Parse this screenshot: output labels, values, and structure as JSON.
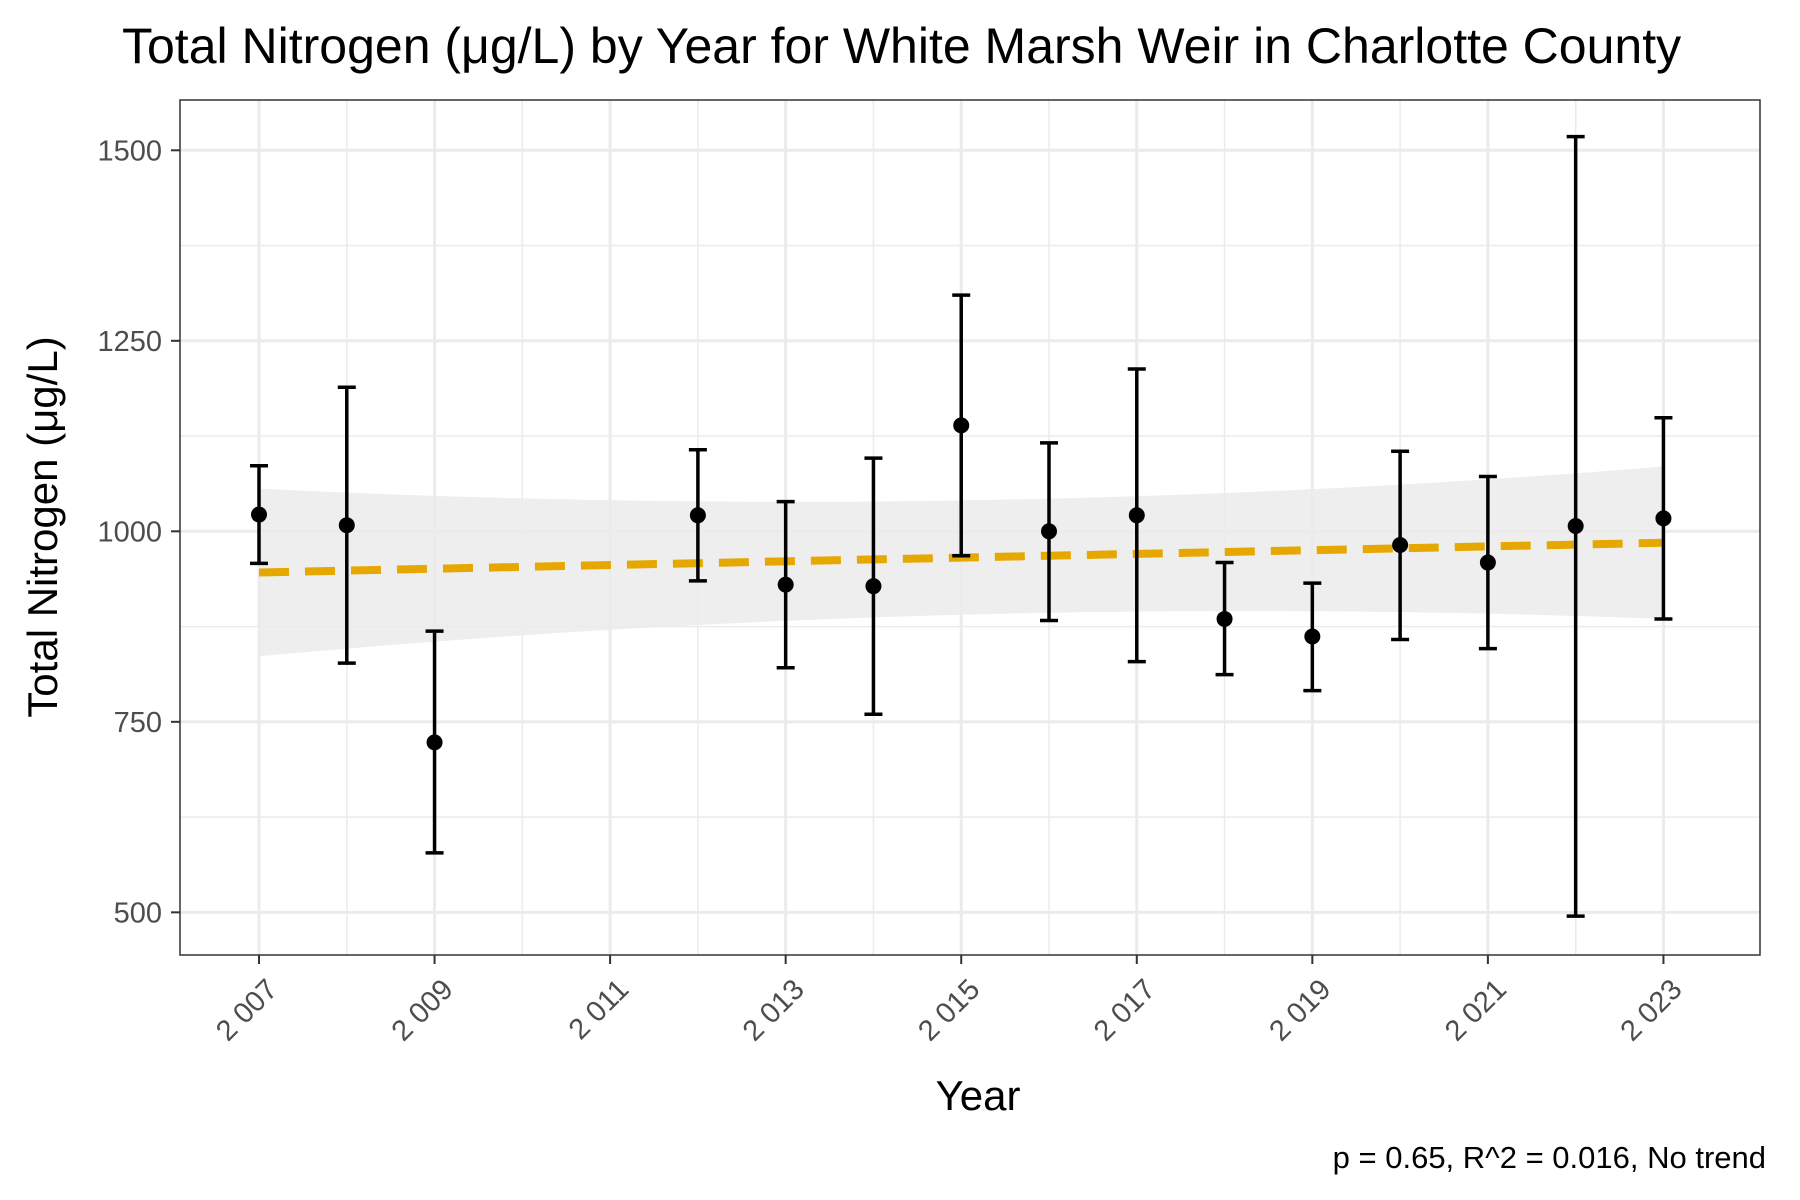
{
  "chart_data": {
    "type": "scatter",
    "title": "Total Nitrogen (μg/L) by Year for White Marsh Weir in Charlotte County",
    "xlabel": "Year",
    "ylabel": "Total Nitrogen (μg/L)",
    "caption": "p = 0.65, R^2 = 0.016, No trend",
    "xlim": [
      2006.1,
      2024.1
    ],
    "ylim": [
      444,
      1566
    ],
    "x_ticks": [
      2007,
      2009,
      2011,
      2013,
      2015,
      2017,
      2019,
      2021,
      2023
    ],
    "x_tick_labels": [
      "2 007",
      "2 009",
      "2 011",
      "2 013",
      "2 015",
      "2 017",
      "2 019",
      "2 021",
      "2 023"
    ],
    "y_ticks": [
      500,
      750,
      1000,
      1250,
      1500
    ],
    "y_tick_labels": [
      "500",
      "750",
      "1000",
      "1250",
      "1500"
    ],
    "grid": true,
    "series": [
      {
        "x": [
          2007,
          2008,
          2009,
          2012,
          2013,
          2014,
          2015,
          2016,
          2017,
          2018,
          2019,
          2020,
          2021,
          2022,
          2023
        ],
        "mean": [
          1022,
          1008,
          723,
          1021,
          930,
          928,
          1139,
          1000,
          1021,
          885,
          862,
          982,
          959,
          1007,
          1017
        ],
        "lower": [
          958,
          827,
          578,
          935,
          821,
          760,
          968,
          883,
          829,
          812,
          791,
          858,
          846,
          495,
          885
        ],
        "upper": [
          1086,
          1189,
          869,
          1107,
          1039,
          1096,
          1310,
          1116,
          1213,
          959,
          932,
          1105,
          1072,
          1518,
          1149
        ]
      }
    ],
    "trend": {
      "x": [
        2007,
        2023
      ],
      "y": [
        946,
        985
      ],
      "ci_lower": [
        836,
        885
      ],
      "ci_upper": [
        1056,
        1085
      ],
      "color": "#E6A800",
      "style": "dashed"
    },
    "colors": {
      "points": "#000000",
      "ribbon": "#EBEBEB",
      "grid": "#EBEBEB",
      "panel_border": "#333333"
    }
  }
}
